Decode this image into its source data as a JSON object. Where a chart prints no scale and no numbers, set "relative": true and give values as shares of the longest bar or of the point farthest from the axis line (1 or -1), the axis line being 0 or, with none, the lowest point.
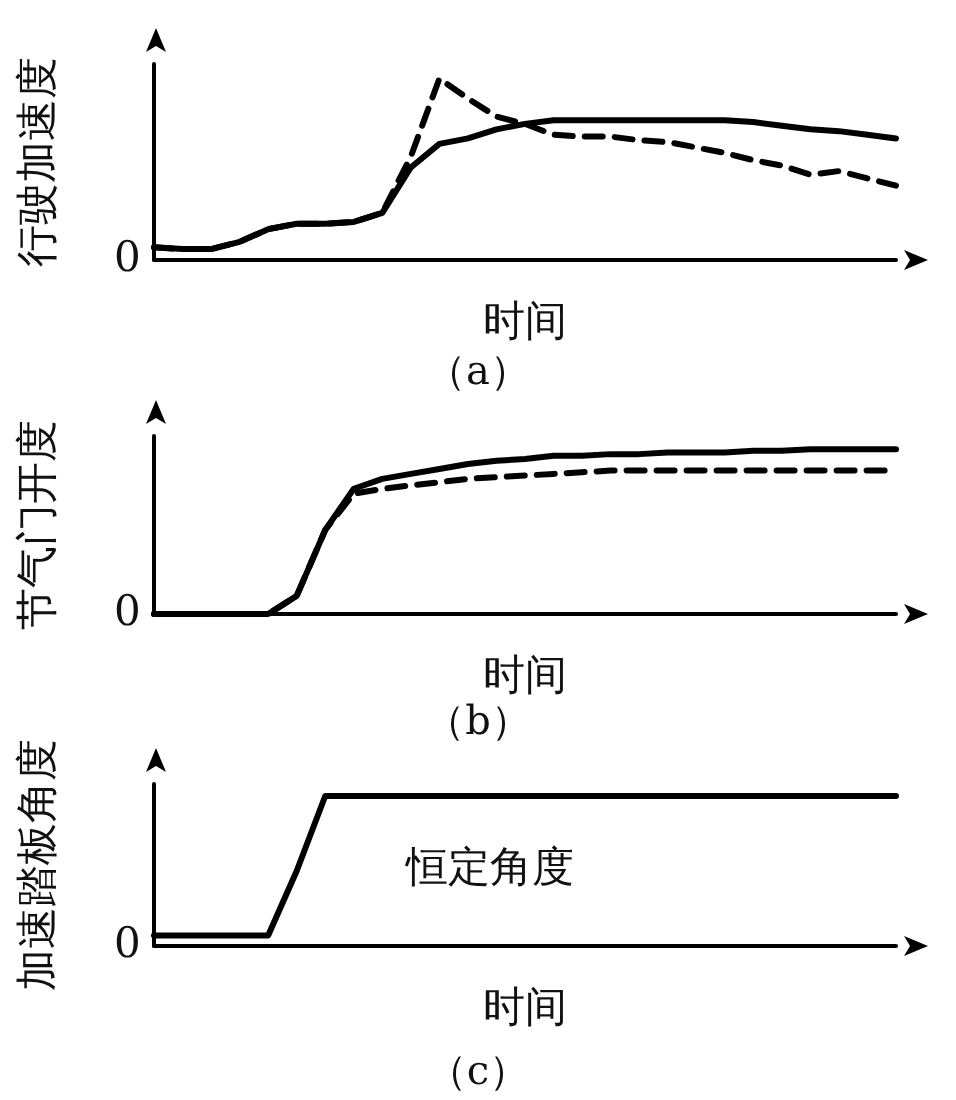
{
  "chart_data": [
    {
      "type": "line",
      "title": "（a）",
      "xlabel": "时间",
      "ylabel": "行驶加速度",
      "relative": true,
      "categories": [
        null,
        null,
        null,
        null,
        null,
        null,
        null,
        null,
        null,
        null,
        null,
        null,
        null,
        null,
        null,
        null,
        null,
        null,
        null,
        null,
        null,
        null,
        null,
        null,
        null,
        null,
        null
      ],
      "annotations": [
        "0"
      ],
      "series": [
        {
          "color": "#000000",
          "line_style": "solid",
          "values": [
            0.07,
            0.06,
            0.06,
            0.1,
            0.17,
            0.2,
            0.2,
            0.21,
            0.26,
            0.51,
            0.64,
            0.67,
            0.72,
            0.75,
            0.77,
            0.77,
            0.77,
            0.77,
            0.77,
            0.77,
            0.77,
            0.76,
            0.74,
            0.72,
            0.71,
            0.69,
            0.67
          ]
        },
        {
          "color": "#000000",
          "line_style": "dashed",
          "values": [
            0.07,
            0.06,
            0.06,
            0.1,
            0.17,
            0.2,
            0.2,
            0.21,
            0.26,
            0.57,
            1,
            0.89,
            0.79,
            0.75,
            0.69,
            0.68,
            0.68,
            0.66,
            0.65,
            0.62,
            0.59,
            0.55,
            0.52,
            0.47,
            0.49,
            0.45,
            0.41
          ]
        }
      ]
    },
    {
      "type": "line",
      "title": "（b）",
      "xlabel": "时间",
      "ylabel": "节气门开度",
      "relative": true,
      "categories": [
        null,
        null,
        null,
        null,
        null,
        null,
        null,
        null,
        null,
        null,
        null,
        null,
        null,
        null,
        null,
        null,
        null,
        null,
        null,
        null,
        null,
        null,
        null,
        null,
        null,
        null,
        null
      ],
      "annotations": [
        "0"
      ],
      "series": [
        {
          "color": "#000000",
          "line_style": "solid",
          "values": [
            0,
            0,
            0,
            0,
            0,
            0.11,
            0.51,
            0.76,
            0.82,
            0.85,
            0.88,
            0.91,
            0.93,
            0.94,
            0.96,
            0.96,
            0.97,
            0.97,
            0.98,
            0.98,
            0.98,
            0.99,
            0.99,
            1,
            1,
            1,
            1
          ]
        },
        {
          "color": "#000000",
          "line_style": "dashed",
          "values": [
            0,
            0,
            0,
            0,
            0,
            0.11,
            0.51,
            0.73,
            0.76,
            0.78,
            0.8,
            0.82,
            0.83,
            0.84,
            0.85,
            0.86,
            0.87,
            0.87,
            0.87,
            0.87,
            0.87,
            0.87,
            0.87,
            0.87,
            0.87,
            0.87,
            0.87
          ]
        }
      ]
    },
    {
      "type": "line",
      "title": "（c）",
      "xlabel": "时间",
      "ylabel": "加速踏板角度",
      "relative": true,
      "categories": [
        null,
        null,
        null,
        null,
        null,
        null,
        null,
        null,
        null,
        null,
        null,
        null,
        null,
        null,
        null,
        null,
        null,
        null,
        null,
        null,
        null,
        null,
        null,
        null,
        null,
        null,
        null
      ],
      "annotations": [
        "0",
        "恒定角度"
      ],
      "series": [
        {
          "color": "#000000",
          "line_style": "solid",
          "values": [
            0.07,
            0.07,
            0.07,
            0.07,
            0.07,
            0.5,
            1,
            1,
            1,
            1,
            1,
            1,
            1,
            1,
            1,
            1,
            1,
            1,
            1,
            1,
            1,
            1,
            1,
            1,
            1,
            1,
            1
          ]
        }
      ]
    }
  ]
}
